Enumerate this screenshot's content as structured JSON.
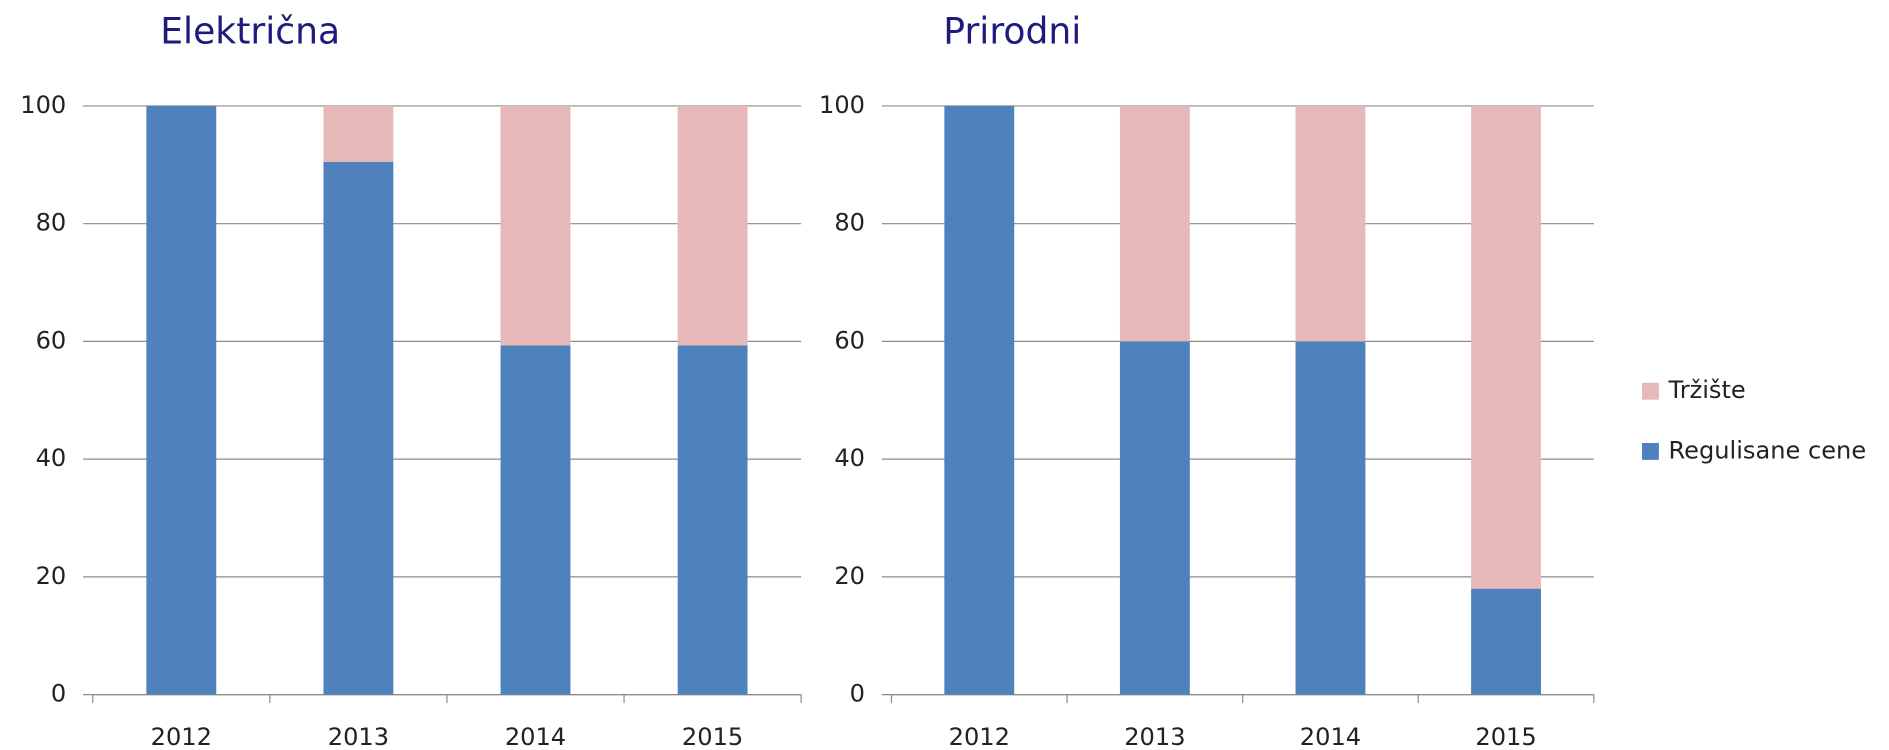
{
  "chart_data": [
    {
      "type": "stacked_bar",
      "title": "Električna",
      "categories": [
        "2012",
        "2013",
        "2014",
        "2015"
      ],
      "series": [
        {
          "color": "#4f81bd",
          "values": [
            100,
            90.5,
            59.3,
            59.3
          ]
        },
        {
          "color": "#e6b9b8",
          "values": [
            0,
            9.5,
            40.7,
            40.7
          ]
        }
      ],
      "ylim": [
        0,
        100
      ],
      "yticks": [
        0,
        20,
        40,
        60,
        80,
        100
      ],
      "grid": true
    },
    {
      "type": "stacked_bar",
      "title": "Prirodni",
      "categories": [
        "2012",
        "2013",
        "2014",
        "2015"
      ],
      "series": [
        {
          "name": "Regulisane cene",
          "color": "#4f81bd",
          "values": [
            100,
            60,
            60,
            18
          ]
        },
        {
          "name": "Tržište",
          "color": "#e6b9b8",
          "values": [
            0,
            40,
            40,
            82
          ]
        }
      ],
      "ylim": [
        0,
        100
      ],
      "yticks": [
        0,
        20,
        40,
        60,
        80,
        100
      ],
      "grid": true,
      "legend": "right"
    }
  ]
}
